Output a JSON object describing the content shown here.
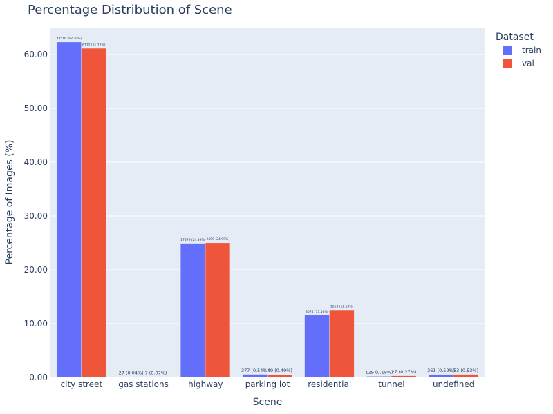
{
  "chart_data": {
    "type": "bar",
    "title": "Percentage Distribution of Scene",
    "xlabel": "Scene",
    "ylabel": "Percentage of Images (%)",
    "ylim": [
      0,
      65
    ],
    "yticks": [
      0,
      10,
      20,
      30,
      40,
      50,
      60
    ],
    "ytick_labels": [
      "0.00",
      "10.00",
      "20.00",
      "30.00",
      "40.00",
      "50.00",
      "60.00"
    ],
    "grid": true,
    "legend_title": "Dataset",
    "legend_placement": "top-right",
    "categories": [
      "city street",
      "gas stations",
      "highway",
      "parking lot",
      "residential",
      "tunnel",
      "undefined"
    ],
    "series": [
      {
        "name": "train",
        "color": "#636efa",
        "values": [
          62.29,
          0.04,
          24.89,
          0.54,
          11.56,
          0.18,
          0.52
        ],
        "labels": [
          "43516 (62.29%)",
          "27 (0.04%)",
          "17379 (24.89%)",
          "377 (0.54%)",
          "8074 (11.56%)",
          "129 (0.18%)",
          "361 (0.52%)"
        ]
      },
      {
        "name": "val",
        "color": "#ef553b",
        "values": [
          61.12,
          0.07,
          24.99,
          0.49,
          12.53,
          0.27,
          0.53
        ],
        "labels": [
          "6112 (61.12%)",
          "7 (0.07%)",
          "2499 (24.99%)",
          "49 (0.49%)",
          "1253 (12.53%)",
          "27 (0.27%)",
          "53 (0.53%)"
        ]
      }
    ]
  }
}
